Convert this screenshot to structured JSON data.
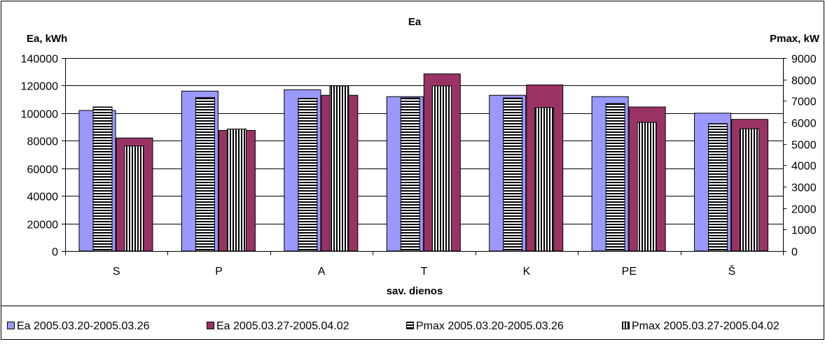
{
  "chart_data": {
    "type": "bar",
    "title": "Ea",
    "xlabel": "sav. dienos",
    "ylabel_left": "Ea, kWh",
    "ylabel_right": "Pmax, kW",
    "categories": [
      "S",
      "P",
      "A",
      "T",
      "K",
      "PE",
      "Š"
    ],
    "y_left_lim": [
      0,
      140000
    ],
    "y_left_ticks": [
      "0",
      "20000",
      "40000",
      "60000",
      "80000",
      "100000",
      "120000",
      "140000"
    ],
    "y_right_lim": [
      0,
      9000
    ],
    "y_right_ticks": [
      "0",
      "1000",
      "2000",
      "3000",
      "4000",
      "5000",
      "6000",
      "7000",
      "8000",
      "9000"
    ],
    "grid": "horizontal",
    "legend_position": "bottom",
    "series": [
      {
        "name": "Ea 2005.03.20-2005.03.26",
        "axis": "left",
        "pattern": "solid",
        "color": "#9999ff",
        "values": [
          102000,
          116000,
          117000,
          112000,
          113000,
          112000,
          100000
        ]
      },
      {
        "name": "Ea 2005.03.27-2005.04.02",
        "axis": "left",
        "pattern": "solid",
        "color": "#993366",
        "values": [
          82000,
          87500,
          113000,
          128500,
          120500,
          104500,
          95500
        ]
      },
      {
        "name": "Pmax  2005.03.20-2005.03.26",
        "axis": "right",
        "pattern": "horizontal-stripes",
        "color": "#ffffff",
        "values": [
          6720,
          7160,
          7120,
          7140,
          7140,
          6880,
          5940
        ]
      },
      {
        "name": "Pmax 2005.03.27-2005.04.02",
        "axis": "right",
        "pattern": "vertical-stripes",
        "color": "#ffffff",
        "values": [
          4900,
          5690,
          7700,
          7700,
          6690,
          6000,
          5700
        ]
      }
    ]
  }
}
